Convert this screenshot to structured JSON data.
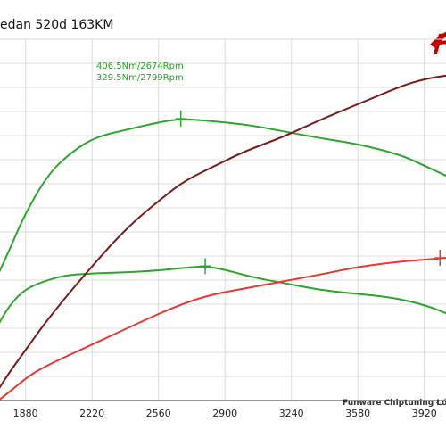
{
  "title": "edan 520d 163KM",
  "credit": "Funware Chiptuning Łódź",
  "logo": {
    "name": "funware-logo",
    "text": "F",
    "color": "#c40000"
  },
  "chart_data": {
    "type": "line",
    "title": "edan 520d 163KM",
    "xlabel": "",
    "ylabel": "",
    "xlim": [
      1740,
      4040
    ],
    "ylim": [
      0,
      1
    ],
    "grid": true,
    "x_ticks": [
      1880,
      2220,
      2560,
      2900,
      3240,
      3580,
      3920
    ],
    "series": [
      {
        "color": "#2da52d",
        "points": [
          [
            1740,
            0.35
          ],
          [
            1800,
            0.42
          ],
          [
            1880,
            0.52
          ],
          [
            2000,
            0.63
          ],
          [
            2120,
            0.69
          ],
          [
            2240,
            0.73
          ],
          [
            2400,
            0.75
          ],
          [
            2560,
            0.77
          ],
          [
            2674,
            0.78
          ],
          [
            2800,
            0.775
          ],
          [
            3000,
            0.765
          ],
          [
            3200,
            0.745
          ],
          [
            3400,
            0.725
          ],
          [
            3580,
            0.71
          ],
          [
            3800,
            0.68
          ],
          [
            3920,
            0.65
          ],
          [
            4040,
            0.62
          ]
        ]
      },
      {
        "color": "#2da52d",
        "points": [
          [
            1740,
            0.21
          ],
          [
            1800,
            0.265
          ],
          [
            1880,
            0.31
          ],
          [
            2000,
            0.335
          ],
          [
            2100,
            0.348
          ],
          [
            2240,
            0.352
          ],
          [
            2400,
            0.355
          ],
          [
            2560,
            0.36
          ],
          [
            2700,
            0.368
          ],
          [
            2799,
            0.372
          ],
          [
            2900,
            0.362
          ],
          [
            3050,
            0.34
          ],
          [
            3250,
            0.32
          ],
          [
            3400,
            0.305
          ],
          [
            3580,
            0.295
          ],
          [
            3760,
            0.285
          ],
          [
            3920,
            0.265
          ],
          [
            4040,
            0.24
          ]
        ]
      },
      {
        "color": "#7a1a1a",
        "points": [
          [
            1740,
            0.03
          ],
          [
            1800,
            0.08
          ],
          [
            1880,
            0.14
          ],
          [
            2000,
            0.23
          ],
          [
            2200,
            0.36
          ],
          [
            2400,
            0.48
          ],
          [
            2600,
            0.57
          ],
          [
            2700,
            0.61
          ],
          [
            2850,
            0.65
          ],
          [
            3000,
            0.69
          ],
          [
            3200,
            0.73
          ],
          [
            3400,
            0.78
          ],
          [
            3580,
            0.82
          ],
          [
            3800,
            0.87
          ],
          [
            3920,
            0.89
          ],
          [
            4040,
            0.9
          ]
        ]
      },
      {
        "color": "#e8382f",
        "points": [
          [
            1740,
            0.0
          ],
          [
            1800,
            0.025
          ],
          [
            1900,
            0.07
          ],
          [
            2000,
            0.1
          ],
          [
            2200,
            0.15
          ],
          [
            2400,
            0.2
          ],
          [
            2600,
            0.25
          ],
          [
            2800,
            0.29
          ],
          [
            3000,
            0.31
          ],
          [
            3200,
            0.33
          ],
          [
            3400,
            0.35
          ],
          [
            3580,
            0.37
          ],
          [
            3800,
            0.385
          ],
          [
            3920,
            0.39
          ],
          [
            4040,
            0.395
          ]
        ]
      }
    ],
    "annotations": [
      {
        "text": "406.5Nm/2674Rpm",
        "x": 2674,
        "y": 0.78,
        "color": "#2da52d"
      },
      {
        "text": "329.5Nm/2799Rpm",
        "x": 2799,
        "y": 0.372,
        "color": "#2da52d"
      },
      {
        "x": 4000,
        "y": 0.395,
        "color": "#e8382f"
      }
    ]
  }
}
